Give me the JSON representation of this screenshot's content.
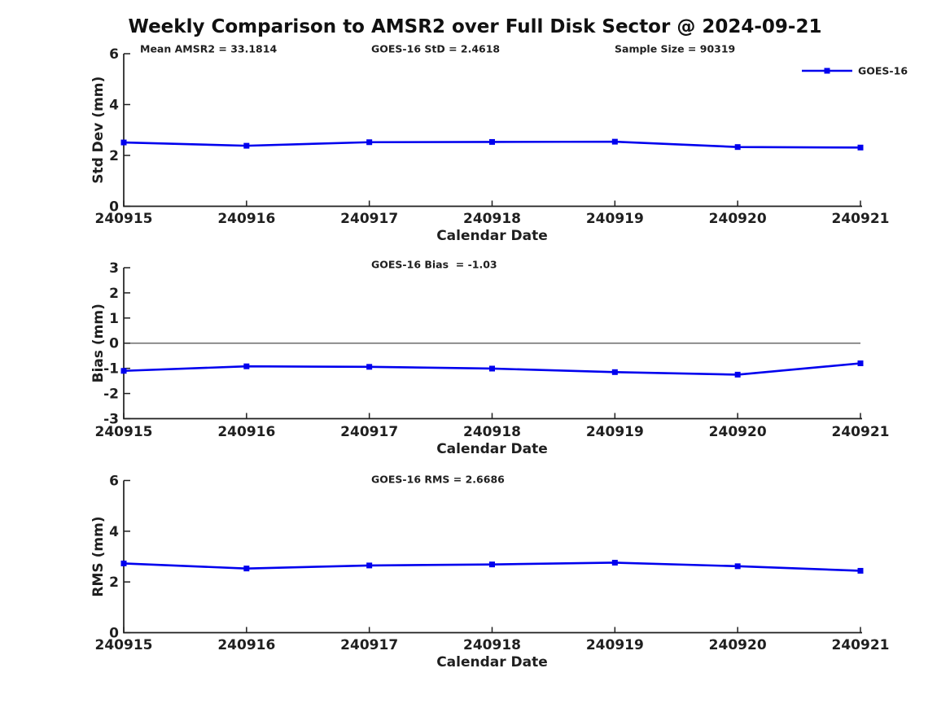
{
  "title": "Weekly Comparison to AMSR2 over Full Disk Sector @ 2024-09-21",
  "legend": {
    "label": "GOES-16"
  },
  "x_label": "Calendar Date",
  "x_categories": [
    "240915",
    "240916",
    "240917",
    "240918",
    "240919",
    "240920",
    "240921"
  ],
  "colors": {
    "line": "#0000EE",
    "axis": "#1f1f1f",
    "text": "#1f1f1f",
    "zero_line": "#6b6b6b"
  },
  "chart_data": [
    {
      "id": "stddev",
      "type": "line",
      "ylabel": "Std Dev (mm)",
      "xlabel": "Calendar Date",
      "ylim": [
        0,
        6
      ],
      "yticks": [
        0,
        2,
        4,
        6
      ],
      "grid": false,
      "zero_line": false,
      "legend_position": "upper-right",
      "annotations": [
        "Mean AMSR2 = 33.1814",
        "GOES-16 StD = 2.4618",
        "Sample Size = 90319"
      ],
      "categories": [
        "240915",
        "240916",
        "240917",
        "240918",
        "240919",
        "240920",
        "240921"
      ],
      "series": [
        {
          "name": "GOES-16",
          "values": [
            2.51,
            2.38,
            2.52,
            2.53,
            2.54,
            2.33,
            2.31
          ]
        }
      ]
    },
    {
      "id": "bias",
      "type": "line",
      "ylabel": "Bias (mm)",
      "xlabel": "Calendar Date",
      "ylim": [
        -3,
        3
      ],
      "yticks": [
        -3,
        -2,
        -1,
        0,
        1,
        2,
        3
      ],
      "grid": false,
      "zero_line": true,
      "annotations": [
        "GOES-16 Bias  = -1.03"
      ],
      "categories": [
        "240915",
        "240916",
        "240917",
        "240918",
        "240919",
        "240920",
        "240921"
      ],
      "series": [
        {
          "name": "GOES-16",
          "values": [
            -1.1,
            -0.92,
            -0.94,
            -1.01,
            -1.15,
            -1.25,
            -0.8
          ]
        }
      ]
    },
    {
      "id": "rms",
      "type": "line",
      "ylabel": "RMS (mm)",
      "xlabel": "Calendar Date",
      "ylim": [
        0,
        6
      ],
      "yticks": [
        0,
        2,
        4,
        6
      ],
      "grid": false,
      "zero_line": false,
      "annotations": [
        "GOES-16 RMS = 2.6686"
      ],
      "categories": [
        "240915",
        "240916",
        "240917",
        "240918",
        "240919",
        "240920",
        "240921"
      ],
      "series": [
        {
          "name": "GOES-16",
          "values": [
            2.73,
            2.53,
            2.65,
            2.69,
            2.76,
            2.62,
            2.44
          ]
        }
      ]
    }
  ]
}
